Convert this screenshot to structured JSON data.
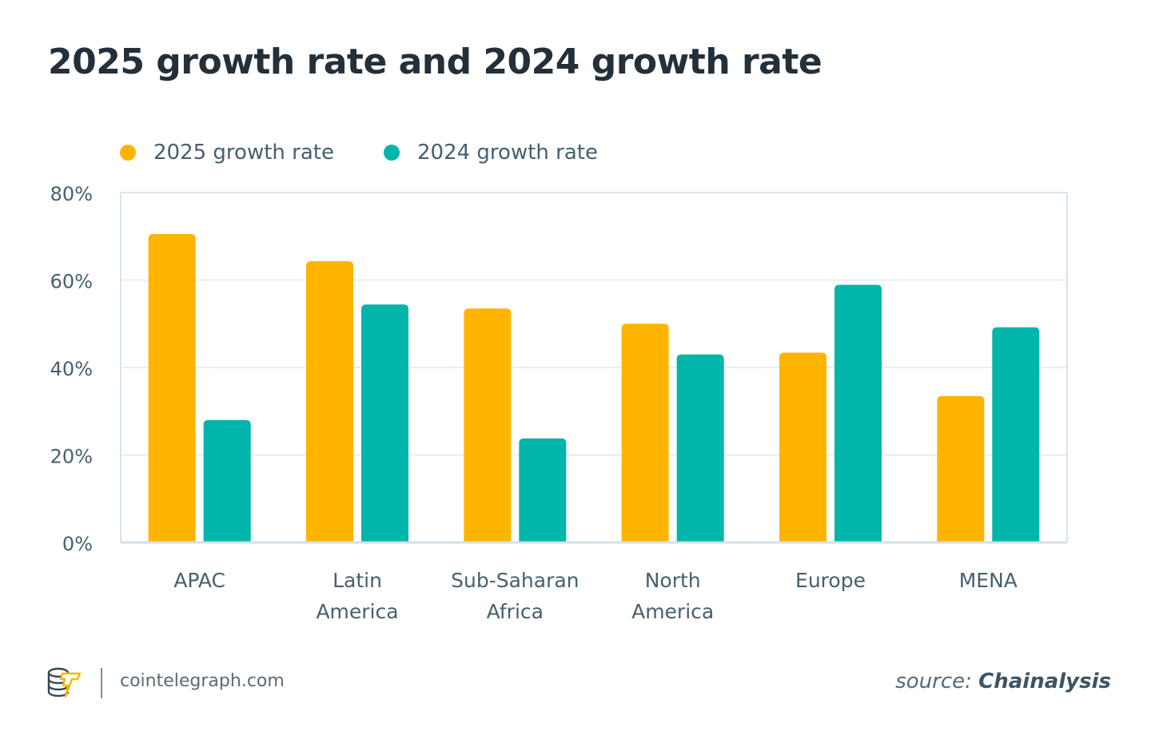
{
  "chart_data": {
    "type": "bar",
    "title": "2025 growth rate and 2024 growth rate",
    "xlabel": "",
    "ylabel": "",
    "categories": [
      [
        "APAC"
      ],
      [
        "Latin",
        "America"
      ],
      [
        "Sub-Saharan",
        "Africa"
      ],
      [
        "North",
        "America"
      ],
      [
        "Europe"
      ],
      [
        "MENA"
      ]
    ],
    "category_names": [
      "APAC",
      "Latin America",
      "Sub-Saharan Africa",
      "North America",
      "Europe",
      "MENA"
    ],
    "series": [
      {
        "name": "2025 growth rate",
        "color": "#ffb400",
        "values": [
          70.5,
          64.3,
          53.5,
          50.0,
          43.4,
          33.5
        ]
      },
      {
        "name": "2024 growth rate",
        "color": "#00b5aa",
        "values": [
          28.0,
          54.4,
          23.8,
          43.0,
          58.9,
          49.2
        ]
      }
    ],
    "ylim": [
      0,
      80
    ],
    "yticks": [
      0,
      20,
      40,
      60,
      80
    ],
    "ytick_labels": [
      "0%",
      "20%",
      "40%",
      "60%",
      "80%"
    ],
    "grid": true,
    "legend_position": "top-left"
  },
  "footer": {
    "site": "cointelegraph.com",
    "source_label": "source:",
    "source_name": "Chainalysis"
  },
  "colors": {
    "brand_yellow": "#ffb400",
    "brand_teal": "#00b5aa"
  }
}
